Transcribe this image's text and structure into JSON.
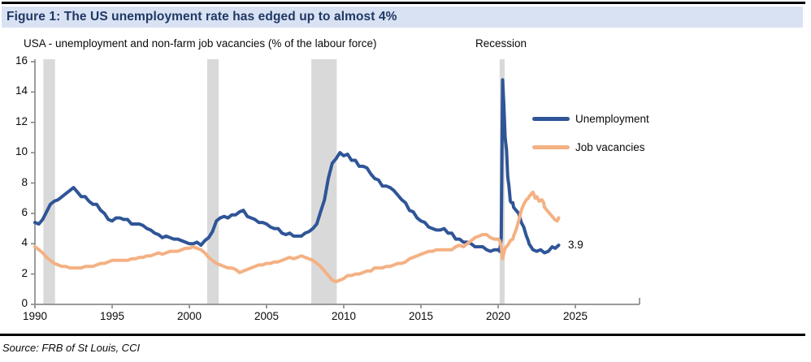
{
  "page": {
    "title": "Figure 1: The US unemployment rate has edged up to almost 4%",
    "source": "Source: FRB of St Louis, CCI"
  },
  "chart_data": {
    "type": "line",
    "subtitle": "USA - unemployment and non-farm job vacancies (% of the labour force)",
    "recession_label": "Recession",
    "end_label": "3.9",
    "xlabel": "",
    "ylabel": "",
    "xlim": [
      1990,
      2029.2
    ],
    "ylim": [
      0,
      16
    ],
    "x_ticks": [
      1990,
      1995,
      2000,
      2005,
      2010,
      2015,
      2020,
      2025
    ],
    "y_ticks": [
      0,
      2,
      4,
      6,
      8,
      10,
      12,
      14,
      16
    ],
    "grid": false,
    "legend_position": "inside-right",
    "colors": {
      "unemployment": "#2F5597",
      "job_vacancies": "#F4B183",
      "recession_band": "#D9D9D9",
      "axis": "#8C8C8C",
      "title_bar_bg": "#D9E2F3",
      "title_text": "#1F3864",
      "rule": "#000000"
    },
    "recession_bands": [
      [
        1990.55,
        1991.3
      ],
      [
        2001.15,
        2001.9
      ],
      [
        2007.9,
        2009.55
      ],
      [
        2020.1,
        2020.42
      ]
    ],
    "series": [
      {
        "name": "Unemployment",
        "color": "#2F5597",
        "points": [
          [
            1990.0,
            5.4
          ],
          [
            1990.25,
            5.3
          ],
          [
            1990.5,
            5.6
          ],
          [
            1990.75,
            6.1
          ],
          [
            1991.0,
            6.6
          ],
          [
            1991.25,
            6.8
          ],
          [
            1991.5,
            6.9
          ],
          [
            1991.75,
            7.1
          ],
          [
            1992.0,
            7.3
          ],
          [
            1992.25,
            7.5
          ],
          [
            1992.5,
            7.7
          ],
          [
            1992.75,
            7.4
          ],
          [
            1993.0,
            7.1
          ],
          [
            1993.25,
            7.1
          ],
          [
            1993.5,
            6.8
          ],
          [
            1993.75,
            6.6
          ],
          [
            1994.0,
            6.6
          ],
          [
            1994.25,
            6.2
          ],
          [
            1994.5,
            6.0
          ],
          [
            1994.75,
            5.6
          ],
          [
            1995.0,
            5.5
          ],
          [
            1995.25,
            5.7
          ],
          [
            1995.5,
            5.7
          ],
          [
            1995.75,
            5.6
          ],
          [
            1996.0,
            5.6
          ],
          [
            1996.25,
            5.3
          ],
          [
            1996.5,
            5.3
          ],
          [
            1996.75,
            5.3
          ],
          [
            1997.0,
            5.2
          ],
          [
            1997.25,
            5.0
          ],
          [
            1997.5,
            4.9
          ],
          [
            1997.75,
            4.7
          ],
          [
            1998.0,
            4.6
          ],
          [
            1998.25,
            4.4
          ],
          [
            1998.5,
            4.5
          ],
          [
            1998.75,
            4.4
          ],
          [
            1999.0,
            4.3
          ],
          [
            1999.25,
            4.3
          ],
          [
            1999.5,
            4.2
          ],
          [
            1999.75,
            4.1
          ],
          [
            2000.0,
            4.0
          ],
          [
            2000.25,
            4.0
          ],
          [
            2000.5,
            4.1
          ],
          [
            2000.75,
            3.9
          ],
          [
            2001.0,
            4.2
          ],
          [
            2001.25,
            4.4
          ],
          [
            2001.5,
            4.8
          ],
          [
            2001.75,
            5.5
          ],
          [
            2002.0,
            5.7
          ],
          [
            2002.25,
            5.8
          ],
          [
            2002.5,
            5.7
          ],
          [
            2002.75,
            5.9
          ],
          [
            2003.0,
            5.9
          ],
          [
            2003.25,
            6.1
          ],
          [
            2003.5,
            6.2
          ],
          [
            2003.75,
            5.8
          ],
          [
            2004.0,
            5.7
          ],
          [
            2004.25,
            5.6
          ],
          [
            2004.5,
            5.4
          ],
          [
            2004.75,
            5.4
          ],
          [
            2005.0,
            5.3
          ],
          [
            2005.25,
            5.1
          ],
          [
            2005.5,
            5.0
          ],
          [
            2005.75,
            5.0
          ],
          [
            2006.0,
            4.7
          ],
          [
            2006.25,
            4.6
          ],
          [
            2006.5,
            4.7
          ],
          [
            2006.75,
            4.5
          ],
          [
            2007.0,
            4.5
          ],
          [
            2007.25,
            4.5
          ],
          [
            2007.5,
            4.7
          ],
          [
            2007.75,
            4.8
          ],
          [
            2008.0,
            5.0
          ],
          [
            2008.25,
            5.3
          ],
          [
            2008.5,
            6.1
          ],
          [
            2008.75,
            6.9
          ],
          [
            2009.0,
            8.3
          ],
          [
            2009.25,
            9.3
          ],
          [
            2009.5,
            9.6
          ],
          [
            2009.75,
            10.0
          ],
          [
            2010.0,
            9.8
          ],
          [
            2010.25,
            9.9
          ],
          [
            2010.5,
            9.5
          ],
          [
            2010.75,
            9.5
          ],
          [
            2011.0,
            9.1
          ],
          [
            2011.25,
            9.1
          ],
          [
            2011.5,
            9.0
          ],
          [
            2011.75,
            8.6
          ],
          [
            2012.0,
            8.3
          ],
          [
            2012.25,
            8.2
          ],
          [
            2012.5,
            7.8
          ],
          [
            2012.75,
            7.8
          ],
          [
            2013.0,
            7.7
          ],
          [
            2013.25,
            7.5
          ],
          [
            2013.5,
            7.2
          ],
          [
            2013.75,
            6.9
          ],
          [
            2014.0,
            6.7
          ],
          [
            2014.25,
            6.2
          ],
          [
            2014.5,
            6.1
          ],
          [
            2014.75,
            5.7
          ],
          [
            2015.0,
            5.5
          ],
          [
            2015.25,
            5.4
          ],
          [
            2015.5,
            5.1
          ],
          [
            2015.75,
            5.0
          ],
          [
            2016.0,
            4.9
          ],
          [
            2016.25,
            4.9
          ],
          [
            2016.5,
            5.0
          ],
          [
            2016.75,
            4.7
          ],
          [
            2017.0,
            4.7
          ],
          [
            2017.25,
            4.3
          ],
          [
            2017.5,
            4.3
          ],
          [
            2017.75,
            4.1
          ],
          [
            2018.0,
            4.1
          ],
          [
            2018.25,
            4.0
          ],
          [
            2018.5,
            3.8
          ],
          [
            2018.75,
            3.8
          ],
          [
            2019.0,
            3.8
          ],
          [
            2019.25,
            3.6
          ],
          [
            2019.5,
            3.5
          ],
          [
            2019.75,
            3.6
          ],
          [
            2020.0,
            3.6
          ],
          [
            2020.1,
            3.5
          ],
          [
            2020.2,
            4.4
          ],
          [
            2020.29,
            14.8
          ],
          [
            2020.37,
            13.2
          ],
          [
            2020.45,
            11.0
          ],
          [
            2020.54,
            10.2
          ],
          [
            2020.62,
            8.4
          ],
          [
            2020.7,
            7.8
          ],
          [
            2020.79,
            6.8
          ],
          [
            2020.87,
            6.7
          ],
          [
            2020.95,
            6.7
          ],
          [
            2021.0,
            6.4
          ],
          [
            2021.16,
            6.2
          ],
          [
            2021.33,
            6.0
          ],
          [
            2021.5,
            5.4
          ],
          [
            2021.66,
            5.1
          ],
          [
            2021.83,
            4.5
          ],
          [
            2021.95,
            4.2
          ],
          [
            2022.0,
            4.0
          ],
          [
            2022.25,
            3.6
          ],
          [
            2022.5,
            3.5
          ],
          [
            2022.75,
            3.6
          ],
          [
            2023.0,
            3.4
          ],
          [
            2023.25,
            3.5
          ],
          [
            2023.5,
            3.8
          ],
          [
            2023.7,
            3.7
          ],
          [
            2023.92,
            3.9
          ]
        ]
      },
      {
        "name": "Job vacancies",
        "color": "#F4B183",
        "points": [
          [
            1990.0,
            3.8
          ],
          [
            1990.25,
            3.6
          ],
          [
            1990.5,
            3.4
          ],
          [
            1990.75,
            3.1
          ],
          [
            1991.0,
            2.9
          ],
          [
            1991.25,
            2.7
          ],
          [
            1991.5,
            2.6
          ],
          [
            1991.75,
            2.5
          ],
          [
            1992.0,
            2.5
          ],
          [
            1992.25,
            2.4
          ],
          [
            1992.5,
            2.4
          ],
          [
            1992.75,
            2.4
          ],
          [
            1993.0,
            2.4
          ],
          [
            1993.25,
            2.5
          ],
          [
            1993.5,
            2.5
          ],
          [
            1993.75,
            2.5
          ],
          [
            1994.0,
            2.6
          ],
          [
            1994.25,
            2.7
          ],
          [
            1994.5,
            2.7
          ],
          [
            1994.75,
            2.8
          ],
          [
            1995.0,
            2.9
          ],
          [
            1995.25,
            2.9
          ],
          [
            1995.5,
            2.9
          ],
          [
            1995.75,
            2.9
          ],
          [
            1996.0,
            2.9
          ],
          [
            1996.25,
            3.0
          ],
          [
            1996.5,
            3.0
          ],
          [
            1996.75,
            3.1
          ],
          [
            1997.0,
            3.1
          ],
          [
            1997.25,
            3.2
          ],
          [
            1997.5,
            3.2
          ],
          [
            1997.75,
            3.3
          ],
          [
            1998.0,
            3.4
          ],
          [
            1998.25,
            3.3
          ],
          [
            1998.5,
            3.4
          ],
          [
            1998.75,
            3.5
          ],
          [
            1999.0,
            3.5
          ],
          [
            1999.25,
            3.5
          ],
          [
            1999.5,
            3.6
          ],
          [
            1999.75,
            3.7
          ],
          [
            2000.0,
            3.7
          ],
          [
            2000.25,
            3.8
          ],
          [
            2000.5,
            3.7
          ],
          [
            2000.75,
            3.6
          ],
          [
            2001.0,
            3.4
          ],
          [
            2001.25,
            3.1
          ],
          [
            2001.5,
            2.9
          ],
          [
            2001.75,
            2.7
          ],
          [
            2002.0,
            2.6
          ],
          [
            2002.25,
            2.5
          ],
          [
            2002.5,
            2.4
          ],
          [
            2002.75,
            2.4
          ],
          [
            2003.0,
            2.3
          ],
          [
            2003.25,
            2.1
          ],
          [
            2003.5,
            2.2
          ],
          [
            2003.75,
            2.3
          ],
          [
            2004.0,
            2.4
          ],
          [
            2004.25,
            2.5
          ],
          [
            2004.5,
            2.6
          ],
          [
            2004.75,
            2.6
          ],
          [
            2005.0,
            2.7
          ],
          [
            2005.25,
            2.7
          ],
          [
            2005.5,
            2.8
          ],
          [
            2005.75,
            2.8
          ],
          [
            2006.0,
            2.9
          ],
          [
            2006.25,
            3.0
          ],
          [
            2006.5,
            3.1
          ],
          [
            2006.75,
            3.0
          ],
          [
            2007.0,
            3.1
          ],
          [
            2007.25,
            3.2
          ],
          [
            2007.5,
            3.1
          ],
          [
            2007.75,
            3.0
          ],
          [
            2008.0,
            2.9
          ],
          [
            2008.25,
            2.7
          ],
          [
            2008.5,
            2.5
          ],
          [
            2008.75,
            2.2
          ],
          [
            2009.0,
            1.9
          ],
          [
            2009.25,
            1.6
          ],
          [
            2009.5,
            1.5
          ],
          [
            2009.75,
            1.6
          ],
          [
            2010.0,
            1.7
          ],
          [
            2010.25,
            1.9
          ],
          [
            2010.5,
            1.9
          ],
          [
            2010.75,
            2.0
          ],
          [
            2011.0,
            2.0
          ],
          [
            2011.25,
            2.1
          ],
          [
            2011.5,
            2.2
          ],
          [
            2011.75,
            2.2
          ],
          [
            2012.0,
            2.4
          ],
          [
            2012.25,
            2.4
          ],
          [
            2012.5,
            2.4
          ],
          [
            2012.75,
            2.5
          ],
          [
            2013.0,
            2.5
          ],
          [
            2013.25,
            2.6
          ],
          [
            2013.5,
            2.7
          ],
          [
            2013.75,
            2.7
          ],
          [
            2014.0,
            2.8
          ],
          [
            2014.25,
            3.0
          ],
          [
            2014.5,
            3.1
          ],
          [
            2014.75,
            3.2
          ],
          [
            2015.0,
            3.3
          ],
          [
            2015.25,
            3.4
          ],
          [
            2015.5,
            3.5
          ],
          [
            2015.75,
            3.5
          ],
          [
            2016.0,
            3.6
          ],
          [
            2016.25,
            3.6
          ],
          [
            2016.5,
            3.6
          ],
          [
            2016.75,
            3.6
          ],
          [
            2017.0,
            3.6
          ],
          [
            2017.25,
            3.8
          ],
          [
            2017.5,
            3.9
          ],
          [
            2017.75,
            3.8
          ],
          [
            2018.0,
            4.0
          ],
          [
            2018.25,
            4.2
          ],
          [
            2018.5,
            4.4
          ],
          [
            2018.75,
            4.5
          ],
          [
            2019.0,
            4.6
          ],
          [
            2019.25,
            4.6
          ],
          [
            2019.5,
            4.4
          ],
          [
            2019.75,
            4.3
          ],
          [
            2020.0,
            4.3
          ],
          [
            2020.1,
            4.2
          ],
          [
            2020.2,
            3.8
          ],
          [
            2020.29,
            3.0
          ],
          [
            2020.37,
            3.4
          ],
          [
            2020.45,
            3.7
          ],
          [
            2020.62,
            3.9
          ],
          [
            2020.79,
            4.2
          ],
          [
            2020.95,
            4.3
          ],
          [
            2021.0,
            4.5
          ],
          [
            2021.16,
            4.9
          ],
          [
            2021.33,
            5.5
          ],
          [
            2021.5,
            6.2
          ],
          [
            2021.66,
            6.6
          ],
          [
            2021.83,
            6.9
          ],
          [
            2021.95,
            7.0
          ],
          [
            2022.0,
            7.1
          ],
          [
            2022.16,
            7.3
          ],
          [
            2022.25,
            7.4
          ],
          [
            2022.41,
            7.0
          ],
          [
            2022.5,
            7.1
          ],
          [
            2022.66,
            6.8
          ],
          [
            2022.83,
            6.9
          ],
          [
            2022.95,
            6.7
          ],
          [
            2023.0,
            6.4
          ],
          [
            2023.16,
            6.2
          ],
          [
            2023.33,
            6.0
          ],
          [
            2023.5,
            5.8
          ],
          [
            2023.66,
            5.6
          ],
          [
            2023.83,
            5.5
          ],
          [
            2023.92,
            5.7
          ]
        ]
      }
    ]
  }
}
